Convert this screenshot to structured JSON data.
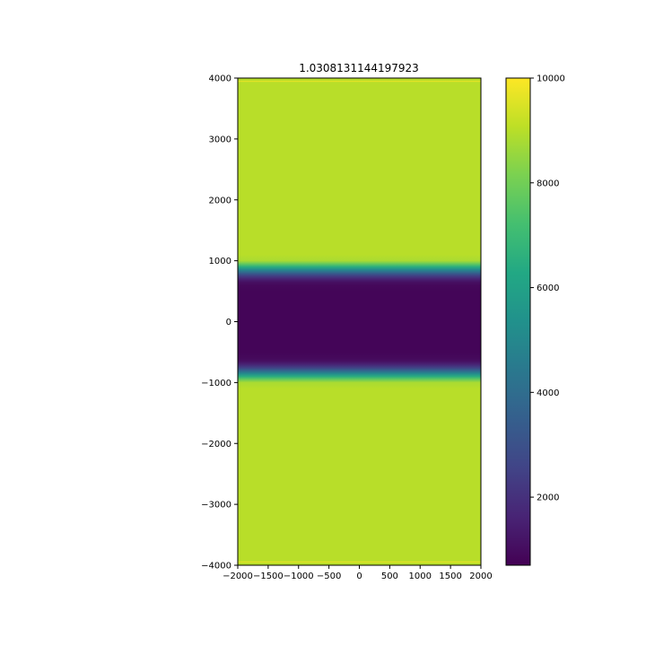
{
  "chart_data": {
    "type": "heatmap",
    "title": "1.0308131144197923",
    "xlabel": "",
    "ylabel": "",
    "xlim": [
      -2000,
      2000
    ],
    "ylim": [
      -4000,
      4000
    ],
    "xticks": [
      -2000,
      -1500,
      -1000,
      -500,
      0,
      500,
      1000,
      1500,
      2000
    ],
    "yticks": [
      -4000,
      -3000,
      -2000,
      -1000,
      0,
      1000,
      2000,
      3000,
      4000
    ],
    "xtick_labels": [
      "−2000",
      "−1500",
      "−1000",
      "−500",
      "0",
      "500",
      "1000",
      "1500",
      "2000"
    ],
    "ytick_labels": [
      "−4000",
      "−3000",
      "−2000",
      "−1000",
      "0",
      "1000",
      "2000",
      "3000",
      "4000"
    ],
    "colormap": "viridis",
    "colorbar": {
      "min": 700,
      "max": 10000,
      "ticks": [
        2000,
        4000,
        6000,
        8000,
        10000
      ],
      "tick_labels": [
        "2000",
        "4000",
        "6000",
        "8000",
        "10000"
      ]
    },
    "profile_along_y": {
      "y": [
        -4000,
        -3960,
        -3950,
        -3930,
        -3000,
        -2000,
        -1100,
        -1000,
        -950,
        -900,
        -850,
        -800,
        -750,
        -700,
        -650,
        -600,
        -500,
        0,
        500,
        600,
        650,
        700,
        750,
        800,
        850,
        900,
        950,
        1000,
        1100,
        2000,
        3000,
        3930,
        3950,
        3960,
        4000
      ],
      "value": [
        9000,
        9000,
        9800,
        9000,
        9000,
        9000,
        9000,
        8800,
        7800,
        6500,
        5000,
        3600,
        2400,
        1600,
        1100,
        900,
        800,
        800,
        800,
        900,
        1100,
        1600,
        2400,
        3600,
        5000,
        6500,
        7800,
        8800,
        9000,
        9000,
        9000,
        9000,
        9800,
        9000,
        9000
      ]
    },
    "grid": false
  }
}
